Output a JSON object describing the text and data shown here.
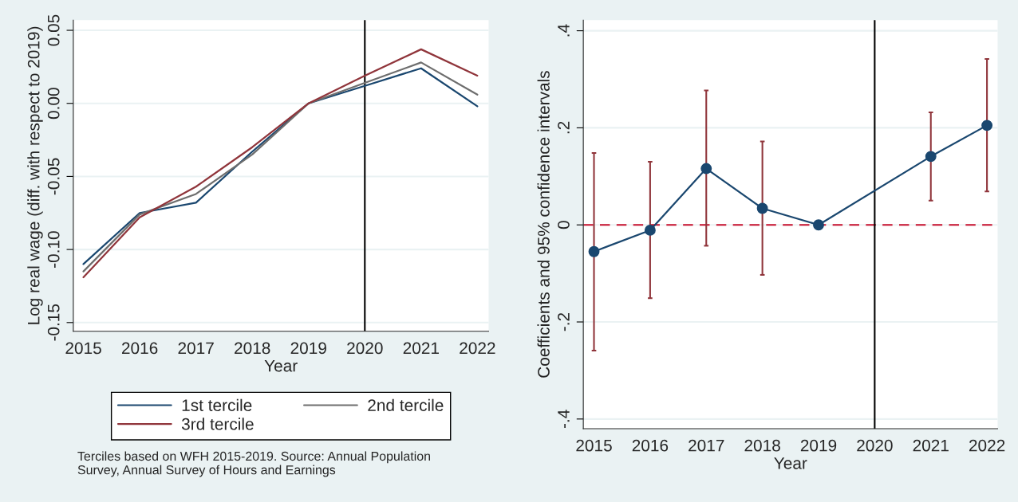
{
  "chart_data": [
    {
      "type": "line",
      "xlabel": "Year",
      "ylabel": "Log real wage (diff. with respect to 2019)",
      "x": [
        2015,
        2016,
        2017,
        2018,
        2019,
        2020,
        2021,
        2022
      ],
      "series": [
        {
          "name": "1st tercile",
          "color": "#1a476f",
          "values": [
            -0.11,
            -0.075,
            -0.068,
            -0.033,
            0.0,
            0.012,
            0.024,
            -0.002
          ]
        },
        {
          "name": "2nd tercile",
          "color": "#6e6e6e",
          "values": [
            -0.115,
            -0.076,
            -0.062,
            -0.035,
            0.0,
            0.014,
            0.028,
            0.006
          ]
        },
        {
          "name": "3rd tercile",
          "color": "#90353b",
          "values": [
            -0.119,
            -0.078,
            -0.057,
            -0.03,
            0.0,
            0.019,
            0.037,
            0.019
          ]
        }
      ],
      "xlim": [
        2014.82,
        2022.2
      ],
      "ylim": [
        -0.156,
        0.057
      ],
      "xticks": [
        2015,
        2016,
        2017,
        2018,
        2019,
        2020,
        2021,
        2022
      ],
      "yticks": [
        {
          "value": -0.15,
          "label": "-0.15"
        },
        {
          "value": -0.1,
          "label": "-0.10"
        },
        {
          "value": -0.05,
          "label": "-0.05"
        },
        {
          "value": 0,
          "label": "0.00"
        },
        {
          "value": 0.05,
          "label": "0.05"
        }
      ],
      "ref_lines": [
        {
          "axis": "x",
          "value": 2020,
          "color": "#000000",
          "line_style": "solid"
        }
      ],
      "grid": "y",
      "legend": "bottom",
      "marker": "none",
      "line_style": "solid",
      "annotations": [
        "Terciles based on WFH 2015-2019. Source: Annual Population\nSurvey, Annual Survey of Hours and Earnings"
      ]
    },
    {
      "type": "line",
      "xlabel": "Year",
      "ylabel": "Coefficients and 95% confidence intervals",
      "series": [
        {
          "color": "#1a476f",
          "x": [
            2015,
            2016,
            2017,
            2018,
            2019,
            2021,
            2022
          ],
          "values": [
            -0.055,
            -0.011,
            0.116,
            0.034,
            0.0,
            0.141,
            0.205
          ],
          "errors": [
            [
              -0.259,
              0.148
            ],
            [
              -0.151,
              0.13
            ],
            [
              -0.043,
              0.277
            ],
            [
              -0.103,
              0.172
            ],
            null,
            [
              0.05,
              0.232
            ],
            [
              0.069,
              0.342
            ]
          ]
        }
      ],
      "xlim": [
        2014.81,
        2022.19
      ],
      "ylim": [
        -0.42,
        0.422
      ],
      "xticks": [
        2015,
        2016,
        2017,
        2018,
        2019,
        2020,
        2021,
        2022
      ],
      "yticks": [
        {
          "value": -0.4,
          "label": "-.4"
        },
        {
          "value": -0.2,
          "label": "-.2"
        },
        0,
        {
          "value": 0.2,
          "label": ".2"
        },
        {
          "value": 0.4,
          "label": ".4"
        }
      ],
      "ref_lines": [
        {
          "axis": "y",
          "value": 0,
          "color": "#c8102e",
          "line_style": "dashed"
        },
        {
          "axis": "x",
          "value": 2020,
          "color": "#000000",
          "line_style": "solid"
        }
      ],
      "grid": "y",
      "legend": false,
      "marker": "circle",
      "line_style": "solid"
    }
  ]
}
